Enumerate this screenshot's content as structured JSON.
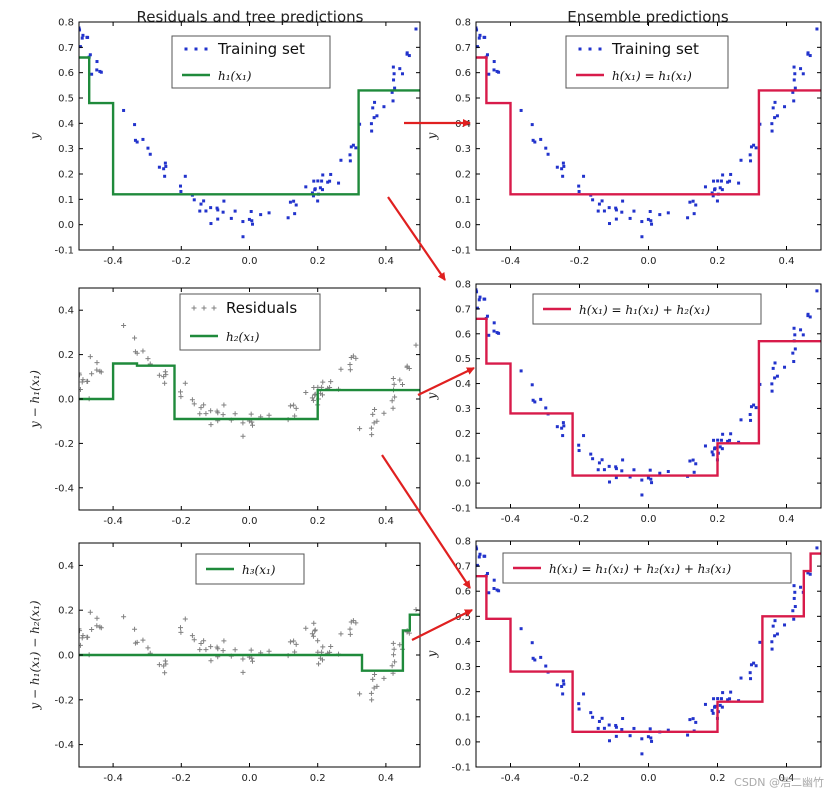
{
  "column_titles": [
    "Residuals and tree predictions",
    "Ensemble predictions"
  ],
  "watermark": "CSDN @浩二幽竹",
  "colors": {
    "tree": "#1f8a3b",
    "ensemble": "#d81b4a",
    "points": "#2233cc",
    "residual_points": "#808080",
    "arrow": "#e02020"
  },
  "chart_data": [
    {
      "id": "p11",
      "type": "line",
      "xlim": [
        -0.5,
        0.5
      ],
      "ylim": [
        -0.1,
        0.8
      ],
      "yticks": [
        -0.1,
        0.0,
        0.1,
        0.2,
        0.3,
        0.4,
        0.5,
        0.6,
        0.7,
        0.8
      ],
      "xticks": [
        -0.4,
        -0.2,
        0.0,
        0.2,
        0.4
      ],
      "ylabel": "y",
      "point_style": "training",
      "line_color": "tree",
      "legend": [
        "Training set",
        "h₁(x₁)"
      ],
      "series": [
        {
          "name": "h₁(x₁)",
          "steps": [
            [
              -0.5,
              0.66
            ],
            [
              -0.47,
              0.66
            ],
            [
              -0.47,
              0.48
            ],
            [
              -0.4,
              0.48
            ],
            [
              -0.4,
              0.12
            ],
            [
              0.32,
              0.12
            ],
            [
              0.32,
              0.53
            ],
            [
              0.5,
              0.53
            ]
          ]
        }
      ]
    },
    {
      "id": "p12",
      "type": "line",
      "xlim": [
        -0.5,
        0.5
      ],
      "ylim": [
        -0.1,
        0.8
      ],
      "yticks": [
        -0.1,
        0.0,
        0.1,
        0.2,
        0.3,
        0.4,
        0.5,
        0.6,
        0.7,
        0.8
      ],
      "xticks": [
        -0.4,
        -0.2,
        0.0,
        0.2,
        0.4
      ],
      "ylabel": "y",
      "point_style": "training",
      "line_color": "ensemble",
      "legend": [
        "Training set",
        "h(x₁) = h₁(x₁)"
      ],
      "series": [
        {
          "name": "h(x₁) = h₁(x₁)",
          "steps": [
            [
              -0.5,
              0.66
            ],
            [
              -0.47,
              0.66
            ],
            [
              -0.47,
              0.48
            ],
            [
              -0.4,
              0.48
            ],
            [
              -0.4,
              0.12
            ],
            [
              0.32,
              0.12
            ],
            [
              0.32,
              0.53
            ],
            [
              0.5,
              0.53
            ]
          ]
        }
      ]
    },
    {
      "id": "p21",
      "type": "line",
      "xlim": [
        -0.5,
        0.5
      ],
      "ylim": [
        -0.5,
        0.5
      ],
      "yticks": [
        -0.4,
        -0.2,
        0.0,
        0.2,
        0.4
      ],
      "xticks": [
        -0.4,
        -0.2,
        0.0,
        0.2,
        0.4
      ],
      "ylabel": "y − h₁(x₁)",
      "point_style": "residual1",
      "line_color": "tree",
      "legend": [
        "Residuals",
        "h₂(x₁)"
      ],
      "series": [
        {
          "name": "h₂(x₁)",
          "steps": [
            [
              -0.5,
              0.0
            ],
            [
              -0.4,
              0.0
            ],
            [
              -0.4,
              0.16
            ],
            [
              -0.33,
              0.16
            ],
            [
              -0.33,
              0.15
            ],
            [
              -0.22,
              0.15
            ],
            [
              -0.22,
              -0.09
            ],
            [
              0.2,
              -0.09
            ],
            [
              0.2,
              0.04
            ],
            [
              0.5,
              0.04
            ]
          ]
        }
      ]
    },
    {
      "id": "p22",
      "type": "line",
      "xlim": [
        -0.5,
        0.5
      ],
      "ylim": [
        -0.1,
        0.8
      ],
      "yticks": [
        -0.1,
        0.0,
        0.1,
        0.2,
        0.3,
        0.4,
        0.5,
        0.6,
        0.7,
        0.8
      ],
      "xticks": [
        -0.4,
        -0.2,
        0.0,
        0.2,
        0.4
      ],
      "ylabel": "y",
      "point_style": "training",
      "line_color": "ensemble",
      "legend": [
        "Training set",
        "h(x₁) = h₁(x₁) + h₂(x₁)"
      ],
      "legend_hide_first": true,
      "series": [
        {
          "name": "h(x₁) = h₁(x₁) + h₂(x₁)",
          "steps": [
            [
              -0.5,
              0.66
            ],
            [
              -0.47,
              0.66
            ],
            [
              -0.47,
              0.48
            ],
            [
              -0.4,
              0.48
            ],
            [
              -0.4,
              0.28
            ],
            [
              -0.22,
              0.28
            ],
            [
              -0.22,
              0.03
            ],
            [
              0.2,
              0.03
            ],
            [
              0.2,
              0.16
            ],
            [
              0.32,
              0.16
            ],
            [
              0.32,
              0.57
            ],
            [
              0.5,
              0.57
            ]
          ]
        }
      ]
    },
    {
      "id": "p31",
      "type": "line",
      "xlim": [
        -0.5,
        0.5
      ],
      "ylim": [
        -0.5,
        0.5
      ],
      "yticks": [
        -0.4,
        -0.2,
        0.0,
        0.2,
        0.4
      ],
      "xticks": [
        -0.4,
        -0.2,
        0.0,
        0.2,
        0.4
      ],
      "ylabel": "y − h₁(x₁) − h₂(x₁)",
      "point_style": "residual2",
      "line_color": "tree",
      "legend": [
        "h₃(x₁)"
      ],
      "series": [
        {
          "name": "h₃(x₁)",
          "steps": [
            [
              -0.5,
              0.0
            ],
            [
              0.33,
              0.0
            ],
            [
              0.33,
              -0.07
            ],
            [
              0.45,
              -0.07
            ],
            [
              0.45,
              0.11
            ],
            [
              0.47,
              0.11
            ],
            [
              0.47,
              0.18
            ],
            [
              0.5,
              0.18
            ]
          ]
        }
      ]
    },
    {
      "id": "p32",
      "type": "line",
      "xlim": [
        -0.5,
        0.5
      ],
      "ylim": [
        -0.1,
        0.8
      ],
      "yticks": [
        -0.1,
        0.0,
        0.1,
        0.2,
        0.3,
        0.4,
        0.5,
        0.6,
        0.7,
        0.8
      ],
      "xticks": [
        -0.4,
        -0.2,
        0.0,
        0.2,
        0.4
      ],
      "ylabel": "y",
      "point_style": "training",
      "line_color": "ensemble",
      "legend": [
        "Training set",
        "h(x₁) = h₁(x₁) + h₂(x₁) + h₃(x₁)"
      ],
      "legend_hide_first": true,
      "series": [
        {
          "name": "h(x₁) = h₁(x₁) + h₂(x₁) + h₃(x₁)",
          "steps": [
            [
              -0.5,
              0.66
            ],
            [
              -0.47,
              0.66
            ],
            [
              -0.47,
              0.49
            ],
            [
              -0.4,
              0.49
            ],
            [
              -0.4,
              0.28
            ],
            [
              -0.22,
              0.28
            ],
            [
              -0.22,
              0.04
            ],
            [
              0.2,
              0.04
            ],
            [
              0.2,
              0.16
            ],
            [
              0.33,
              0.16
            ],
            [
              0.33,
              0.5
            ],
            [
              0.45,
              0.5
            ],
            [
              0.45,
              0.68
            ],
            [
              0.47,
              0.68
            ],
            [
              0.47,
              0.75
            ],
            [
              0.5,
              0.75
            ]
          ]
        }
      ]
    }
  ]
}
